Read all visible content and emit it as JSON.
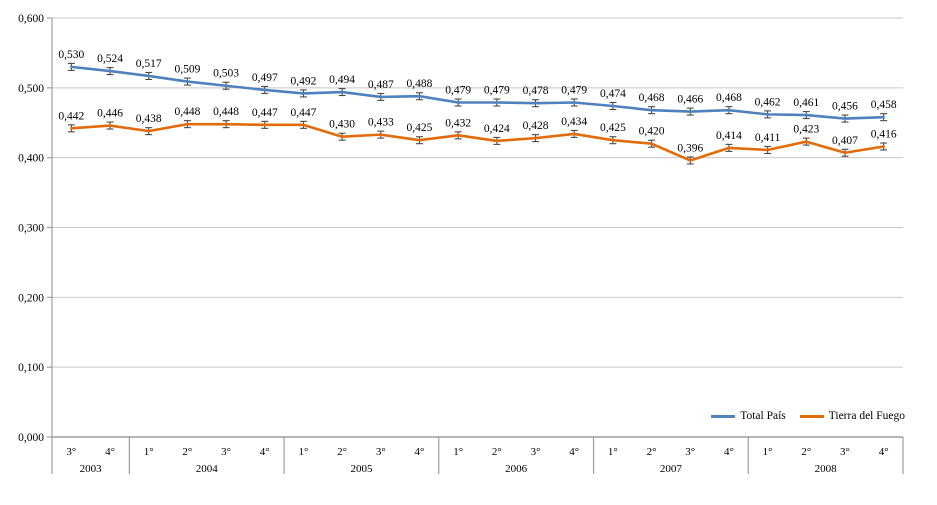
{
  "chart_data": {
    "type": "line",
    "title": "",
    "grid": true,
    "legend_position": "bottom-right",
    "y_axis": {
      "min": 0,
      "max": 0.6,
      "step": 0.1,
      "tick_labels": [
        "0,000",
        "0,100",
        "0,200",
        "0,300",
        "0,400",
        "0,500",
        "0,600"
      ]
    },
    "x_axis": {
      "quarters": [
        "3°",
        "4°",
        "1°",
        "2°",
        "3°",
        "4°",
        "1°",
        "2°",
        "3°",
        "4°",
        "1°",
        "2°",
        "3°",
        "4°",
        "1°",
        "2°",
        "3°",
        "4°",
        "1°",
        "2°",
        "3°",
        "4°"
      ],
      "year_groups": [
        {
          "label": "2003",
          "count": 2
        },
        {
          "label": "2004",
          "count": 4
        },
        {
          "label": "2005",
          "count": 4
        },
        {
          "label": "2006",
          "count": 4
        },
        {
          "label": "2007",
          "count": 4
        },
        {
          "label": "2008",
          "count": 4
        }
      ]
    },
    "error_bar_value": 0.005,
    "series": [
      {
        "name": "Total País",
        "slug": "total-pais",
        "color": "#4F81BD",
        "values": [
          0.53,
          0.524,
          0.517,
          0.509,
          0.503,
          0.497,
          0.492,
          0.494,
          0.487,
          0.488,
          0.479,
          0.479,
          0.478,
          0.479,
          0.474,
          0.468,
          0.466,
          0.468,
          0.462,
          0.461,
          0.456,
          0.458
        ],
        "labels": [
          "0,530",
          "0,524",
          "0,517",
          "0,509",
          "0,503",
          "0,497",
          "0,492",
          "0,494",
          "0,487",
          "0,488",
          "0,479",
          "0,479",
          "0,478",
          "0,479",
          "0,474",
          "0,468",
          "0,466",
          "0,468",
          "0,462",
          "0,461",
          "0,456",
          "0,458"
        ]
      },
      {
        "name": "Tierra del Fuego",
        "slug": "tierra-del-fuego",
        "color": "#E26B0A",
        "values": [
          0.442,
          0.446,
          0.438,
          0.448,
          0.448,
          0.447,
          0.447,
          0.43,
          0.433,
          0.425,
          0.432,
          0.424,
          0.428,
          0.434,
          0.425,
          0.42,
          0.396,
          0.414,
          0.411,
          0.423,
          0.407,
          0.416
        ],
        "labels": [
          "0,442",
          "0,446",
          "0,438",
          "0,448",
          "0,448",
          "0,447",
          "0,447",
          "0,430",
          "0,433",
          "0,425",
          "0,432",
          "0,424",
          "0,428",
          "0,434",
          "0,425",
          "0,420",
          "0,396",
          "0,414",
          "0,411",
          "0,423",
          "0,407",
          "0,416"
        ]
      }
    ],
    "colors": {
      "gridline": "#C6C6C6",
      "axis": "#9E9E9E",
      "error_bar": "#4A4A4A",
      "label_text": "#000000"
    }
  }
}
